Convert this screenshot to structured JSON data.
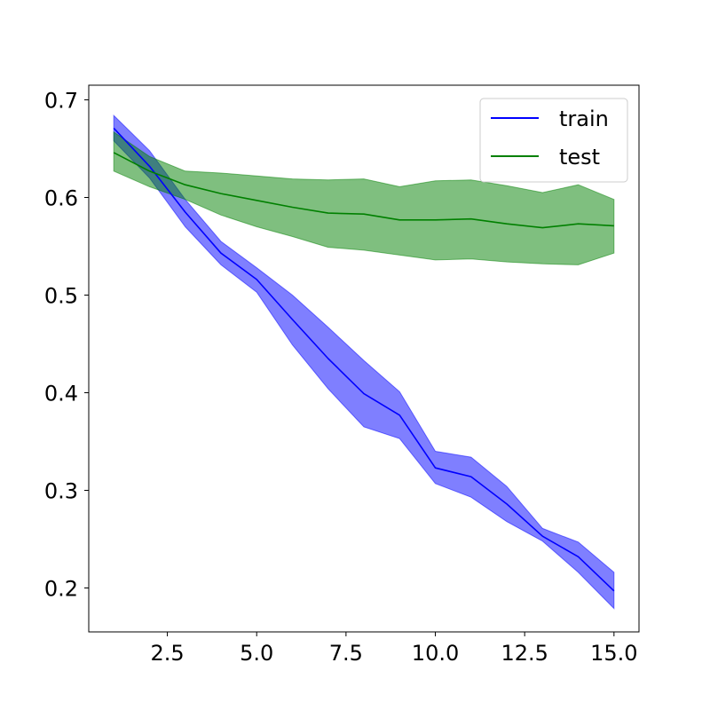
{
  "chart_data": {
    "type": "line",
    "title": "",
    "xlabel": "",
    "ylabel": "",
    "xlim": [
      0.3,
      15.7
    ],
    "ylim": [
      0.155,
      0.715
    ],
    "grid": false,
    "legend_position": "top-right",
    "x_ticks": [
      2.5,
      5.0,
      7.5,
      10.0,
      12.5,
      15.0
    ],
    "x_tick_labels": [
      "2.5",
      "5.0",
      "7.5",
      "10.0",
      "12.5",
      "15.0"
    ],
    "y_ticks": [
      0.2,
      0.3,
      0.4,
      0.5,
      0.6,
      0.7
    ],
    "y_tick_labels": [
      "0.2",
      "0.3",
      "0.4",
      "0.5",
      "0.6",
      "0.7"
    ],
    "x": [
      1,
      2,
      3,
      4,
      5,
      6,
      7,
      8,
      9,
      10,
      11,
      12,
      13,
      14,
      15
    ],
    "series": [
      {
        "name": "train",
        "color": "#0000ff",
        "values": [
          0.671,
          0.632,
          0.585,
          0.543,
          0.516,
          0.475,
          0.435,
          0.399,
          0.377,
          0.323,
          0.314,
          0.286,
          0.253,
          0.232,
          0.197
        ],
        "lower": [
          0.658,
          0.62,
          0.57,
          0.531,
          0.503,
          0.449,
          0.404,
          0.365,
          0.353,
          0.307,
          0.293,
          0.268,
          0.248,
          0.216,
          0.179
        ],
        "upper": [
          0.684,
          0.648,
          0.598,
          0.555,
          0.528,
          0.5,
          0.467,
          0.433,
          0.401,
          0.34,
          0.334,
          0.304,
          0.261,
          0.247,
          0.216
        ]
      },
      {
        "name": "test",
        "color": "#008000",
        "values": [
          0.646,
          0.627,
          0.613,
          0.604,
          0.597,
          0.59,
          0.584,
          0.583,
          0.577,
          0.577,
          0.578,
          0.573,
          0.569,
          0.573,
          0.571
        ],
        "lower": [
          0.627,
          0.611,
          0.598,
          0.582,
          0.57,
          0.56,
          0.549,
          0.546,
          0.541,
          0.536,
          0.537,
          0.534,
          0.532,
          0.531,
          0.543
        ],
        "upper": [
          0.667,
          0.642,
          0.627,
          0.625,
          0.622,
          0.619,
          0.618,
          0.619,
          0.611,
          0.617,
          0.618,
          0.612,
          0.605,
          0.613,
          0.598
        ]
      }
    ]
  }
}
